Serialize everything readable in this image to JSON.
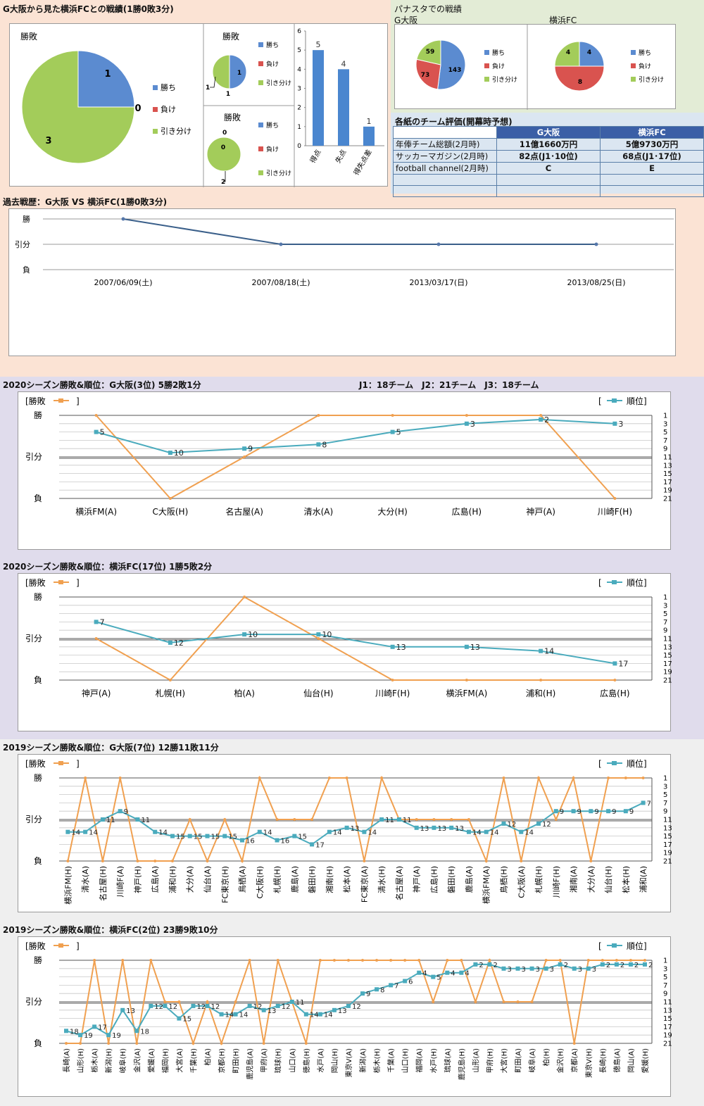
{
  "colors": {
    "win": "#5b8bd0",
    "loss": "#d9534f",
    "draw": "#a3cc5a",
    "result_line": "#f0a050",
    "rank_line": "#4aabbd",
    "bar": "#4a86cf",
    "history_line": "#3a5f8a"
  },
  "sections": {
    "h2h_title": "G大阪から見た横浜FCとの戦績(1勝0敗3分)",
    "panasta_title": "パナスタでの戦績",
    "panasta_gosaka": "G大阪",
    "panasta_yokohama": "横浜FC",
    "eval_title": "各紙のチーム評価(開幕時予想)",
    "history_title": "過去戦歴：G大阪 VS 横浜FC(1勝0敗3分)",
    "g2020_title": "2020シーズン勝敗&順位：G大阪(3位) 5勝2敗1分",
    "league_note": "J1：18チーム　J2：21チーム　J3：18チーム",
    "y2020_title": "2020シーズン勝敗&順位：横浜FC(17位) 1勝5敗2分",
    "g2019_title": "2019シーズン勝敗&順位：G大阪(7位) 12勝11敗11分",
    "y2019_title": "2019シーズン勝敗&順位：横浜FC(2位) 23勝9敗10分"
  },
  "legend": {
    "result": "[勝敗",
    "result_close": "]",
    "rank_open": "[",
    "rank": "順位]",
    "win": "勝ち",
    "loss": "負け",
    "draw": "引き分け"
  },
  "axis": {
    "win": "勝",
    "draw": "引分",
    "loss": "負",
    "rank_ticks": [
      "1",
      "3",
      "5",
      "7",
      "9",
      "11",
      "13",
      "15",
      "17",
      "19",
      "21"
    ]
  },
  "evaluation": {
    "headers": [
      "",
      "G大阪",
      "横浜FC"
    ],
    "rows": [
      [
        "年俸チーム総額(2月時)",
        "11億1660万円",
        "5億9730万円"
      ],
      [
        "サッカーマガジン(2月時)",
        "82点(J1･10位)",
        "68点(J1･17位)"
      ],
      [
        "football channel(2月時)",
        "C",
        "E"
      ],
      [
        "",
        "",
        ""
      ]
    ]
  },
  "chart_data": [
    {
      "id": "h2h-pie-total",
      "type": "pie",
      "title": "勝敗",
      "labels": [
        "勝ち",
        "負け",
        "引き分け"
      ],
      "values": [
        1,
        0,
        3
      ]
    },
    {
      "id": "h2h-pie-home",
      "type": "pie",
      "title": "勝敗",
      "labels": [
        "勝ち",
        "負け",
        "引き分け"
      ],
      "values": [
        1,
        0,
        1
      ]
    },
    {
      "id": "h2h-pie-away",
      "type": "pie",
      "title": "勝敗",
      "labels": [
        "勝ち",
        "負け",
        "引き分け"
      ],
      "values": [
        0,
        0,
        2
      ]
    },
    {
      "id": "h2h-goals",
      "type": "bar",
      "categories": [
        "得点",
        "失点",
        "得失点差"
      ],
      "values": [
        5,
        4,
        1
      ],
      "ylim": [
        0,
        6
      ],
      "yticks": [
        0,
        1,
        2,
        3,
        4,
        5,
        6
      ]
    },
    {
      "id": "panasta-gosaka",
      "type": "pie",
      "title": "G大阪",
      "labels": [
        "勝ち",
        "負け",
        "引き分け"
      ],
      "values": [
        143,
        73,
        59
      ]
    },
    {
      "id": "panasta-yokohama",
      "type": "pie",
      "title": "横浜FC",
      "labels": [
        "勝ち",
        "負け",
        "引き分け"
      ],
      "values": [
        4,
        8,
        4
      ]
    },
    {
      "id": "history",
      "type": "line",
      "title": "過去戦歴：G大阪 VS 横浜FC(1勝0敗3分)",
      "categories": [
        "2007/06/09(土)",
        "2007/08/18(土)",
        "2013/03/17(日)",
        "2013/08/25(日)"
      ],
      "results": [
        "勝",
        "引分",
        "引分",
        "引分"
      ]
    },
    {
      "id": "g2020",
      "type": "line",
      "title": "2020シーズン勝敗&順位：G大阪(3位) 5勝2敗1分",
      "categories": [
        "横浜FM(A)",
        "C大阪(H)",
        "名古屋(A)",
        "清水(A)",
        "大分(H)",
        "広島(H)",
        "神戸(A)",
        "川崎F(H)"
      ],
      "results": [
        "W",
        "L",
        "D",
        "W",
        "W",
        "W",
        "W",
        "L"
      ],
      "ranks": [
        5,
        10,
        9,
        8,
        5,
        3,
        2,
        3
      ]
    },
    {
      "id": "y2020",
      "type": "line",
      "title": "2020シーズン勝敗&順位：横浜FC(17位) 1勝5敗2分",
      "categories": [
        "神戸(A)",
        "札幌(H)",
        "柏(A)",
        "仙台(H)",
        "川崎F(H)",
        "横浜FM(A)",
        "浦和(H)",
        "広島(H)"
      ],
      "results": [
        "D",
        "L",
        "W",
        "D",
        "L",
        "L",
        "L",
        "L"
      ],
      "ranks": [
        7,
        12,
        10,
        10,
        13,
        13,
        14,
        17
      ]
    },
    {
      "id": "g2019",
      "type": "line",
      "title": "2019シーズン勝敗&順位：G大阪(7位) 12勝11敗11分",
      "categories": [
        "横浜FM(H)",
        "清水(A)",
        "名古屋(H)",
        "川崎F(A)",
        "神戸(H)",
        "広島(A)",
        "浦和(H)",
        "大分(A)",
        "仙台(A)",
        "FC東京(H)",
        "鳥栖(A)",
        "C大阪(H)",
        "札幌(H)",
        "鹿島(A)",
        "磐田(H)",
        "湘南(H)",
        "松本(A)",
        "FC東京(A)",
        "清水(H)",
        "名古屋(A)",
        "神戸(A)",
        "広島(H)",
        "磐田(H)",
        "鹿島(A)",
        "横浜FM(A)",
        "鳥栖(H)",
        "C大阪(A)",
        "札幌(H)",
        "川崎F(H)",
        "湘南(A)",
        "大分(A)",
        "仙台(H)",
        "松本(H)",
        "浦和(A)"
      ],
      "results": [
        "L",
        "W",
        "L",
        "W",
        "L",
        "L",
        "L",
        "D",
        "L",
        "D",
        "L",
        "W",
        "D",
        "D",
        "D",
        "W",
        "W",
        "L",
        "W",
        "D",
        "D",
        "D",
        "D",
        "D",
        "L",
        "W",
        "L",
        "W",
        "D",
        "W",
        "L",
        "W",
        "W",
        "W"
      ],
      "ranks": [
        14,
        14,
        11,
        9,
        11,
        14,
        15,
        15,
        15,
        15,
        16,
        14,
        16,
        15,
        17,
        14,
        13,
        14,
        11,
        11,
        13,
        13,
        13,
        14,
        14,
        12,
        14,
        12,
        9,
        9,
        9,
        9,
        9,
        7
      ]
    },
    {
      "id": "y2019",
      "type": "line",
      "title": "2019シーズン勝敗&順位：横浜FC(2位) 23勝9敗10分",
      "categories": [
        "長崎(A)",
        "山形(H)",
        "栃木(A)",
        "新潟(H)",
        "岐阜(H)",
        "金沢(A)",
        "愛媛(A)",
        "福岡(H)",
        "大宮(A)",
        "千葉(H)",
        "柏(A)",
        "京都(H)",
        "町田(H)",
        "鹿児島(A)",
        "甲府(A)",
        "琉球(H)",
        "山口(A)",
        "徳島(H)",
        "水戸(A)",
        "岡山(H)",
        "東京V(A)",
        "新潟(A)",
        "栃木(H)",
        "千葉(A)",
        "山口(H)",
        "福岡(A)",
        "水戸(H)",
        "琉球(A)",
        "鹿児島(H)",
        "山形(A)",
        "甲府(H)",
        "大宮(H)",
        "町田(A)",
        "岐阜(A)",
        "柏(H)",
        "金沢(H)",
        "京都(A)",
        "東京V(H)",
        "長崎(H)",
        "徳島(A)",
        "岡山(A)",
        "愛媛(H)"
      ],
      "results": [
        "L",
        "L",
        "W",
        "L",
        "W",
        "L",
        "W",
        "D",
        "D",
        "L",
        "D",
        "L",
        "D",
        "W",
        "L",
        "W",
        "D",
        "L",
        "W",
        "W",
        "W",
        "W",
        "W",
        "W",
        "W",
        "W",
        "D",
        "W",
        "W",
        "D",
        "W",
        "D",
        "D",
        "D",
        "W",
        "W",
        "L",
        "W",
        "W",
        "W",
        "W",
        "W"
      ],
      "ranks": [
        18,
        19,
        17,
        19,
        13,
        18,
        12,
        12,
        15,
        12,
        12,
        14,
        14,
        12,
        13,
        12,
        11,
        14,
        14,
        13,
        12,
        9,
        8,
        7,
        6,
        4,
        5,
        4,
        4,
        2,
        2,
        3,
        3,
        3,
        3,
        2,
        3,
        3,
        2,
        2,
        2,
        2
      ]
    }
  ]
}
